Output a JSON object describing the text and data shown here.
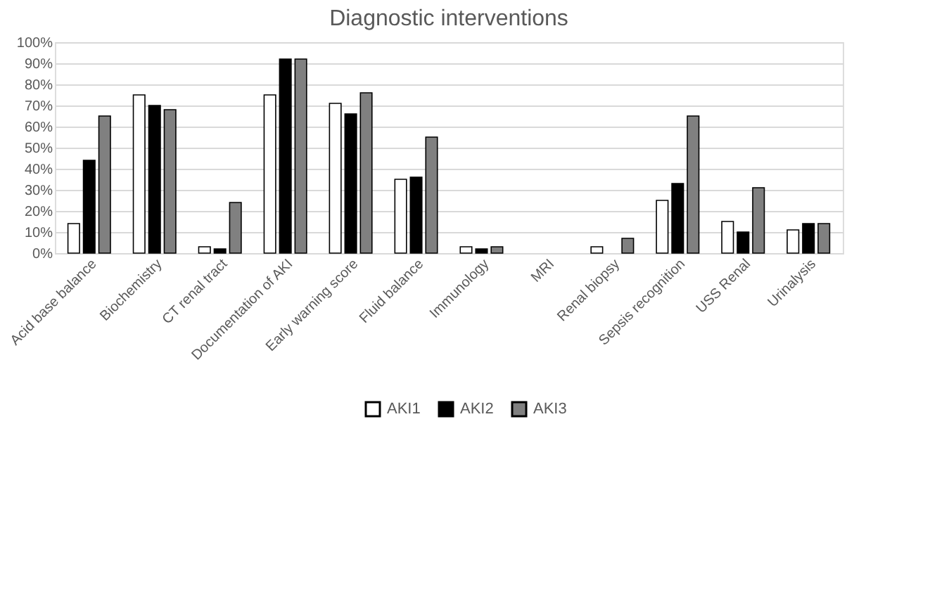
{
  "chart_data": {
    "type": "bar",
    "title": "Diagnostic interventions",
    "categories": [
      "Acid base balance",
      "Biochemistry",
      "CT renal tract",
      "Documentation of AKI",
      "Early warning score",
      "Fluid balance",
      "Immunology",
      "MRI",
      "Renal biopsy",
      "Sepsis recognition",
      "USS Renal",
      "Urinalysis"
    ],
    "series": [
      {
        "name": "AKI1",
        "color": "#ffffff",
        "values": [
          14,
          75,
          3,
          75,
          71,
          35,
          3,
          null,
          3,
          25,
          15,
          11
        ]
      },
      {
        "name": "AKI2",
        "color": "#000000",
        "values": [
          44,
          70,
          2,
          92,
          66,
          36,
          2,
          null,
          null,
          33,
          10,
          14
        ]
      },
      {
        "name": "AKI3",
        "color": "#808080",
        "values": [
          65,
          68,
          24,
          92,
          76,
          55,
          3,
          null,
          7,
          65,
          31,
          14
        ]
      }
    ],
    "ylim": [
      0,
      100
    ],
    "yticks": [
      {
        "value": 0,
        "label": "0%"
      },
      {
        "value": 10,
        "label": "10%"
      },
      {
        "value": 20,
        "label": "20%"
      },
      {
        "value": 30,
        "label": "30%"
      },
      {
        "value": 40,
        "label": "40%"
      },
      {
        "value": 50,
        "label": "50%"
      },
      {
        "value": 60,
        "label": "60%"
      },
      {
        "value": 70,
        "label": "70%"
      },
      {
        "value": 80,
        "label": "80%"
      },
      {
        "value": 90,
        "label": "90%"
      },
      {
        "value": 100,
        "label": "100%"
      }
    ],
    "grid": "y",
    "legend": "bottom"
  }
}
